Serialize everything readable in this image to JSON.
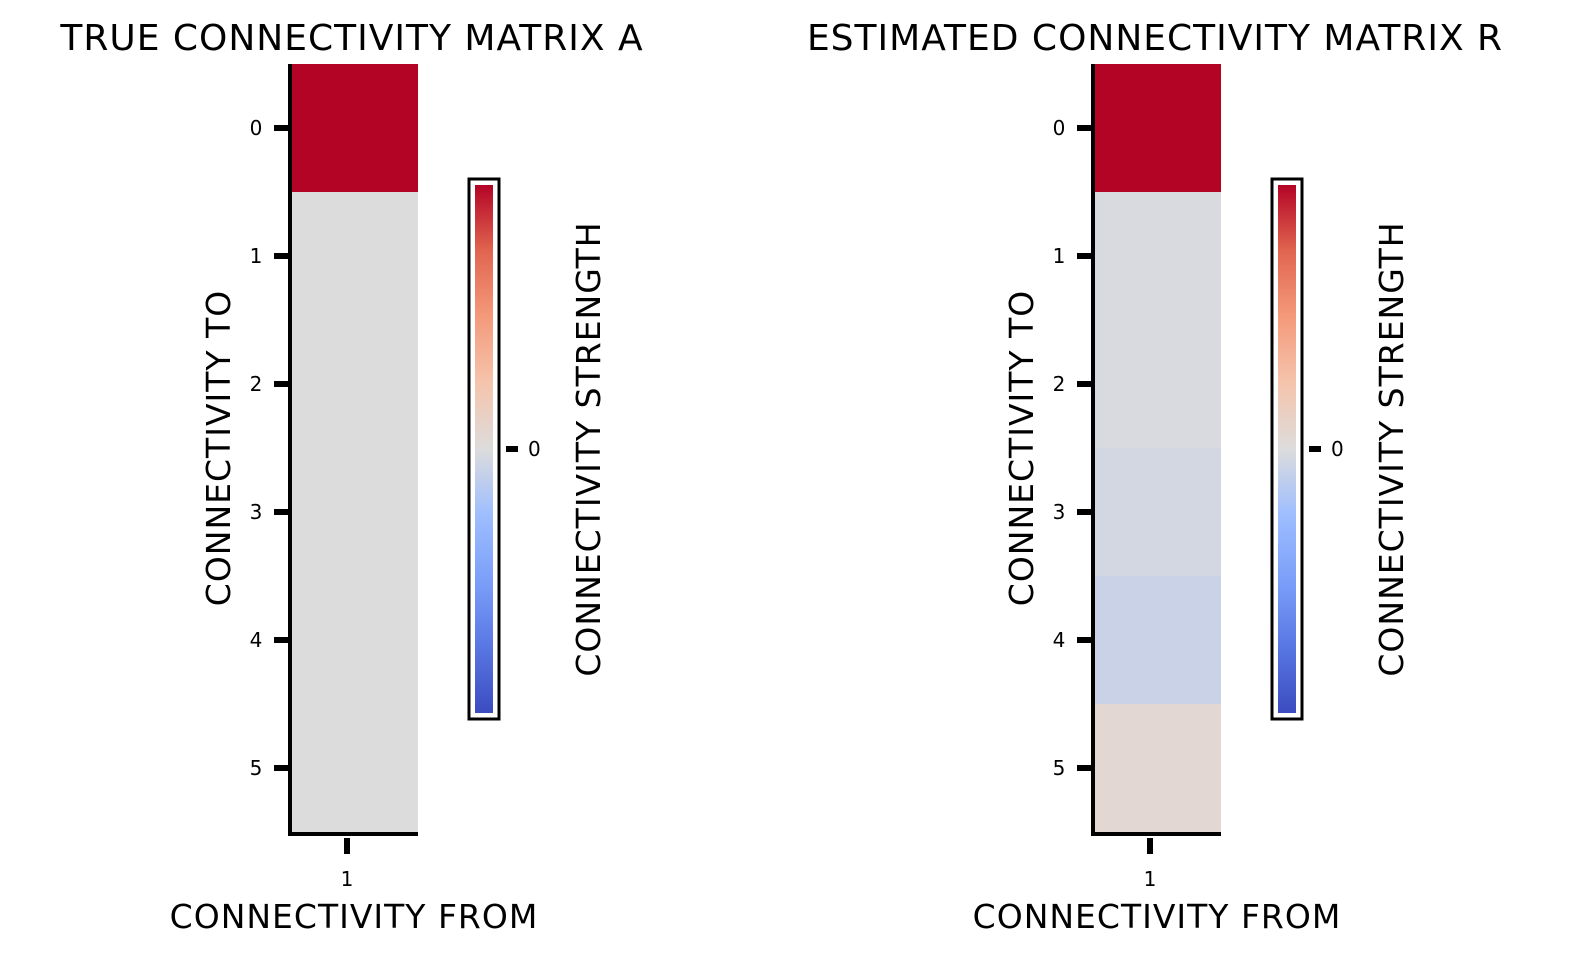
{
  "chart_data": [
    {
      "type": "heatmap",
      "title": "TRUE CONNECTIVITY MATRIX A",
      "xlabel": "CONNECTIVITY FROM",
      "ylabel": "CONNECTIVITY TO",
      "x_ticks": [
        "1"
      ],
      "y_ticks": [
        "0",
        "1",
        "2",
        "3",
        "4",
        "5"
      ],
      "values": [
        [
          1.0
        ],
        [
          0.0
        ],
        [
          0.0
        ],
        [
          0.0
        ],
        [
          0.0
        ],
        [
          0.0
        ]
      ],
      "colormap": "coolwarm",
      "colorbar": {
        "label": "CONNECTIVITY STRENGTH",
        "ticks": [
          "0"
        ],
        "range": [
          -1,
          1
        ]
      }
    },
    {
      "type": "heatmap",
      "title": "ESTIMATED CONNECTIVITY MATRIX R",
      "xlabel": "CONNECTIVITY FROM",
      "ylabel": "CONNECTIVITY TO",
      "x_ticks": [
        "1"
      ],
      "y_ticks": [
        "0",
        "1",
        "2",
        "3",
        "4",
        "5"
      ],
      "values": [
        [
          1.0
        ],
        [
          -0.02
        ],
        [
          -0.02
        ],
        [
          -0.04
        ],
        [
          -0.08
        ],
        [
          0.05
        ]
      ],
      "colormap": "coolwarm",
      "colorbar": {
        "label": "CONNECTIVITY STRENGTH",
        "ticks": [
          "0"
        ],
        "range": [
          -1,
          1
        ]
      }
    }
  ]
}
